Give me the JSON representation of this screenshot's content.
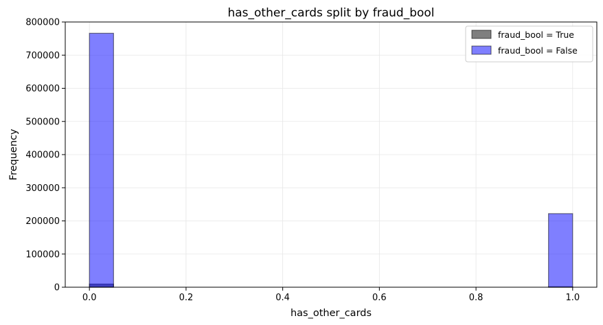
{
  "chart_data": {
    "type": "bar",
    "title": "has_other_cards split by fraud_bool",
    "xlabel": "has_other_cards",
    "ylabel": "Frequency",
    "xlim": [
      -0.05,
      1.05
    ],
    "ylim": [
      0,
      800000
    ],
    "xticks": [
      "0.0",
      "0.2",
      "0.4",
      "0.6",
      "0.8",
      "1.0"
    ],
    "yticks": [
      "0",
      "100000",
      "200000",
      "300000",
      "400000",
      "500000",
      "600000",
      "700000",
      "800000"
    ],
    "grid": true,
    "legend_position": "top-right",
    "bin_width": 0.05,
    "series": [
      {
        "name": "fraud_bool = True",
        "color": "#000000",
        "bins": [
          {
            "x0": 0.0,
            "x1": 0.05,
            "value": 9500
          },
          {
            "x0": 0.95,
            "x1": 1.0,
            "value": 1500
          }
        ]
      },
      {
        "name": "fraud_bool = False",
        "color": "#0000ff",
        "bins": [
          {
            "x0": 0.0,
            "x1": 0.05,
            "value": 766000
          },
          {
            "x0": 0.95,
            "x1": 1.0,
            "value": 222000
          }
        ]
      }
    ]
  }
}
